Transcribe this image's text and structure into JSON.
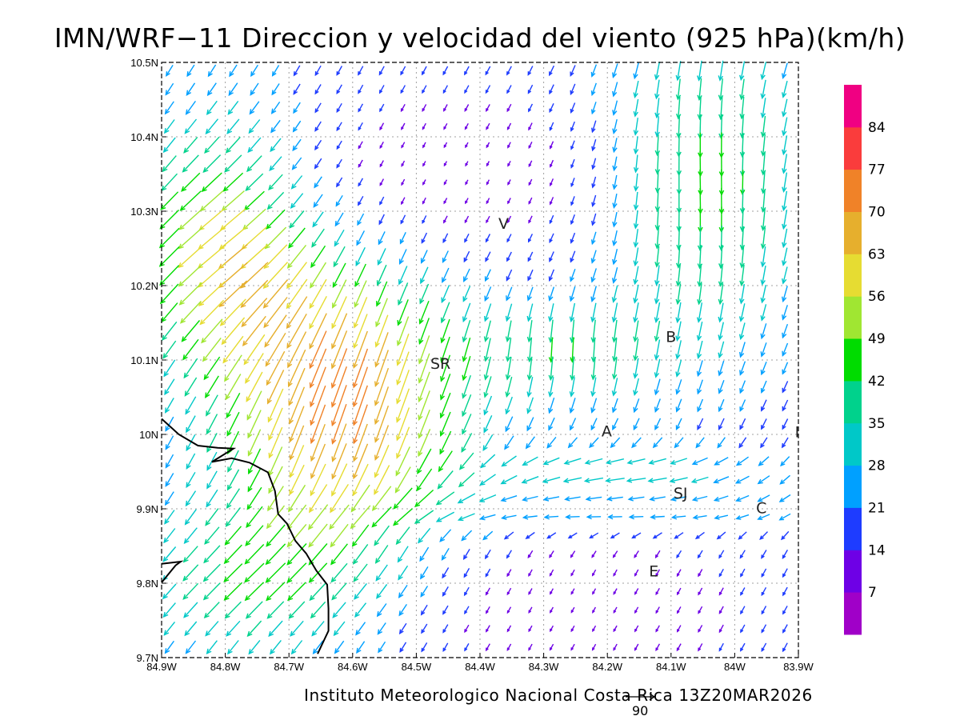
{
  "map": {
    "title": "IMN/WRF−11 Direccion y velocidad del viento (925 hPa)(km/h)",
    "footer": "Instituto Meteorologico Nacional Costa Rica 13Z20MAR2026",
    "reference_vector": "90",
    "extent": {
      "lon": [
        -84.9,
        -83.9
      ],
      "lat": [
        9.7,
        10.5
      ]
    },
    "lon_ticks": [
      "84.9W",
      "84.8W",
      "84.7W",
      "84.6W",
      "84.5W",
      "84.4W",
      "84.3W",
      "84.2W",
      "84.1W",
      "84W",
      "83.9W"
    ],
    "lat_ticks": [
      "9.7N",
      "9.8N",
      "9.9N",
      "10N",
      "10.1N",
      "10.2N",
      "10.3N",
      "10.4N",
      "10.5N"
    ],
    "station_labels": [
      {
        "text": "V",
        "lon": -84.363,
        "lat": 10.282
      },
      {
        "text": "SR",
        "lon": -84.462,
        "lat": 10.094
      },
      {
        "text": "B",
        "lon": -84.1,
        "lat": 10.13
      },
      {
        "text": "A",
        "lon": -84.201,
        "lat": 10.003
      },
      {
        "text": "SJ",
        "lon": -84.085,
        "lat": 9.92
      },
      {
        "text": "C",
        "lon": -83.958,
        "lat": 9.9
      },
      {
        "text": "E",
        "lon": -84.127,
        "lat": 9.815
      },
      {
        "text": "I",
        "lon": -83.902,
        "lat": 10.002
      }
    ],
    "colorbar": {
      "labels": [
        "7",
        "14",
        "21",
        "28",
        "35",
        "42",
        "49",
        "56",
        "63",
        "70",
        "77",
        "84"
      ],
      "colors": [
        "#a000c8",
        "#6e00e6",
        "#1e3cff",
        "#00a0ff",
        "#00c8c8",
        "#00d28c",
        "#00dc00",
        "#a0e632",
        "#e6dc32",
        "#e6af2d",
        "#f08228",
        "#fa3c3c",
        "#f00082"
      ]
    },
    "coastline": [
      {
        "name": "coast-main",
        "points": [
          [
            -84.9,
            10.021
          ],
          [
            -84.873,
            10.0
          ],
          [
            -84.843,
            9.985
          ],
          [
            -84.812,
            9.982
          ],
          [
            -84.787,
            9.981
          ],
          [
            -84.821,
            9.963
          ],
          [
            -84.79,
            9.968
          ],
          [
            -84.762,
            9.962
          ],
          [
            -84.733,
            9.949
          ],
          [
            -84.722,
            9.924
          ],
          [
            -84.717,
            9.893
          ],
          [
            -84.703,
            9.88
          ],
          [
            -84.69,
            9.857
          ],
          [
            -84.673,
            9.84
          ],
          [
            -84.657,
            9.817
          ],
          [
            -84.64,
            9.798
          ],
          [
            -84.638,
            9.766
          ],
          [
            -84.638,
            9.736
          ],
          [
            -84.655,
            9.705
          ]
        ]
      },
      {
        "name": "coast-nicoya",
        "points": [
          [
            -84.9,
            9.826
          ],
          [
            -84.87,
            9.829
          ],
          [
            -84.878,
            9.824
          ],
          [
            -84.9,
            9.801
          ]
        ]
      }
    ]
  }
}
